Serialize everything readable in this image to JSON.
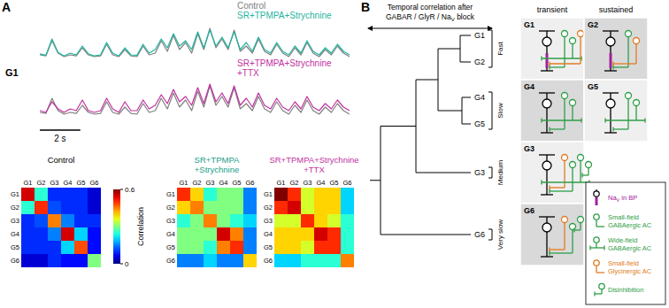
{
  "panel_a": {
    "label": "A",
    "row_label": "G1"
  },
  "chart_data": [
    {
      "type": "line",
      "tick_labels": false,
      "xlim": [
        0,
        15.3
      ],
      "ylim": [
        0,
        1
      ],
      "x": [
        0,
        0.3,
        0.6,
        0.9,
        1.2,
        1.5,
        1.8,
        2.1,
        2.4,
        2.7,
        3,
        3.3,
        3.6,
        3.9,
        4.2,
        4.5,
        4.8,
        5.1,
        5.4,
        5.7,
        6,
        6.3,
        6.6,
        6.9,
        7.2,
        7.5,
        7.8,
        8.1,
        8.4,
        8.7,
        9,
        9.3,
        9.6,
        9.9,
        10.2,
        10.5,
        10.8,
        11.1,
        11.4,
        11.7,
        12,
        12.3,
        12.6,
        12.9,
        13.2,
        13.5,
        13.8,
        14.1,
        14.4,
        14.7,
        15,
        15.3
      ],
      "series": [
        {
          "name": "Control",
          "color": "#808080",
          "values": [
            0.15,
            0.12,
            0.55,
            0.2,
            0.1,
            0.15,
            0.12,
            0.35,
            0.15,
            0.1,
            0.12,
            0.45,
            0.15,
            0.1,
            0.3,
            0.12,
            0.1,
            0.4,
            0.15,
            0.2,
            0.55,
            0.25,
            0.7,
            0.3,
            0.5,
            0.2,
            0.75,
            0.3,
            0.9,
            0.35,
            0.6,
            0.3,
            0.85,
            0.25,
            0.4,
            0.2,
            0.6,
            0.25,
            0.15,
            0.45,
            0.2,
            0.1,
            0.35,
            0.15,
            0.5,
            0.2,
            0.1,
            0.3,
            0.15,
            0.4,
            0.2,
            0.1
          ]
        },
        {
          "name": "SR+TPMPA+Strychnine",
          "color": "#1fb5a0",
          "values": [
            0.18,
            0.14,
            0.6,
            0.22,
            0.12,
            0.2,
            0.15,
            0.4,
            0.18,
            0.12,
            0.15,
            0.5,
            0.2,
            0.12,
            0.35,
            0.15,
            0.14,
            0.45,
            0.2,
            0.3,
            0.6,
            0.35,
            0.75,
            0.4,
            0.55,
            0.3,
            0.8,
            0.35,
            0.85,
            0.4,
            0.65,
            0.35,
            0.8,
            0.3,
            0.5,
            0.25,
            0.65,
            0.3,
            0.2,
            0.5,
            0.25,
            0.15,
            0.4,
            0.2,
            0.55,
            0.25,
            0.15,
            0.35,
            0.2,
            0.45,
            0.25,
            0.15
          ]
        }
      ]
    },
    {
      "type": "line",
      "tick_labels": false,
      "xlim": [
        0,
        15.3
      ],
      "ylim": [
        0,
        1
      ],
      "x": [
        0,
        0.3,
        0.6,
        0.9,
        1.2,
        1.5,
        1.8,
        2.1,
        2.4,
        2.7,
        3,
        3.3,
        3.6,
        3.9,
        4.2,
        4.5,
        4.8,
        5.1,
        5.4,
        5.7,
        6,
        6.3,
        6.6,
        6.9,
        7.2,
        7.5,
        7.8,
        8.1,
        8.4,
        8.7,
        9,
        9.3,
        9.6,
        9.9,
        10.2,
        10.5,
        10.8,
        11.1,
        11.4,
        11.7,
        12,
        12.3,
        12.6,
        12.9,
        13.2,
        13.5,
        13.8,
        14.1,
        14.4,
        14.7,
        15,
        15.3
      ],
      "series": [
        {
          "color": "#808080",
          "values": [
            0.15,
            0.12,
            0.55,
            0.2,
            0.1,
            0.15,
            0.12,
            0.35,
            0.15,
            0.1,
            0.12,
            0.45,
            0.15,
            0.1,
            0.3,
            0.12,
            0.1,
            0.4,
            0.15,
            0.2,
            0.55,
            0.25,
            0.7,
            0.3,
            0.5,
            0.2,
            0.75,
            0.3,
            0.9,
            0.35,
            0.6,
            0.3,
            0.85,
            0.25,
            0.4,
            0.2,
            0.6,
            0.25,
            0.15,
            0.45,
            0.2,
            0.1,
            0.35,
            0.15,
            0.5,
            0.2,
            0.1,
            0.3,
            0.15,
            0.4,
            0.2,
            0.1
          ]
        },
        {
          "name": [
            "SR+TPMPA+Strychnine",
            "+TTX"
          ],
          "color": "#c2319f",
          "values": [
            0.2,
            0.15,
            0.45,
            0.25,
            0.15,
            0.25,
            0.2,
            0.5,
            0.2,
            0.15,
            0.2,
            0.55,
            0.25,
            0.15,
            0.45,
            0.2,
            0.2,
            0.5,
            0.25,
            0.35,
            0.65,
            0.4,
            0.8,
            0.45,
            0.6,
            0.35,
            0.85,
            0.4,
            0.95,
            0.45,
            0.7,
            0.4,
            0.9,
            0.35,
            0.55,
            0.3,
            0.7,
            0.35,
            0.25,
            0.55,
            0.3,
            0.2,
            0.45,
            0.25,
            0.6,
            0.3,
            0.2,
            0.4,
            0.25,
            0.5,
            0.3,
            0.2
          ]
        }
      ],
      "scale_bar": {
        "value": 2,
        "label": "2 s"
      }
    },
    {
      "type": "heatmap",
      "title": [
        "Control"
      ],
      "color": "#000000",
      "categories": [
        "G1",
        "G2",
        "G3",
        "G4",
        "G5",
        "G6"
      ],
      "cells": [
        [
          0.55,
          0.25,
          0.1,
          0.1,
          0.1,
          0.05
        ],
        [
          0.25,
          0.5,
          0.12,
          0.1,
          0.1,
          0.05
        ],
        [
          0.1,
          0.12,
          0.45,
          0.15,
          0.1,
          0.1
        ],
        [
          0.1,
          0.1,
          0.15,
          0.55,
          0.2,
          0.08
        ],
        [
          0.1,
          0.1,
          0.1,
          0.2,
          0.48,
          0.08
        ],
        [
          0.05,
          0.05,
          0.1,
          0.08,
          0.08,
          0.3
        ]
      ],
      "colorbar": {
        "label": "Correlation",
        "range": [
          0,
          0.6
        ],
        "ticks": [
          0,
          0.6
        ]
      }
    },
    {
      "type": "heatmap",
      "title": [
        "SR+TPMPA",
        "+Strychnine"
      ],
      "color": "#1a9e8a",
      "categories": [
        "G1",
        "G2",
        "G3",
        "G4",
        "G5",
        "G6"
      ],
      "cells": [
        [
          0.5,
          0.4,
          0.25,
          0.3,
          0.3,
          0.15
        ],
        [
          0.4,
          0.45,
          0.3,
          0.3,
          0.3,
          0.15
        ],
        [
          0.25,
          0.3,
          0.45,
          0.3,
          0.25,
          0.2
        ],
        [
          0.3,
          0.3,
          0.3,
          0.55,
          0.45,
          0.15
        ],
        [
          0.3,
          0.3,
          0.25,
          0.45,
          0.5,
          0.15
        ],
        [
          0.15,
          0.15,
          0.2,
          0.15,
          0.15,
          0.4
        ]
      ]
    },
    {
      "type": "heatmap",
      "title": [
        "SR+TPMPA+Strychnine",
        "+TTX"
      ],
      "color": "#c2319f",
      "categories": [
        "G1",
        "G2",
        "G3",
        "G4",
        "G5",
        "G6"
      ],
      "cells": [
        [
          0.7,
          0.5,
          0.35,
          0.4,
          0.4,
          0.2
        ],
        [
          0.5,
          0.55,
          0.35,
          0.4,
          0.4,
          0.2
        ],
        [
          0.35,
          0.35,
          0.5,
          0.4,
          0.35,
          0.25
        ],
        [
          0.4,
          0.4,
          0.4,
          0.55,
          0.5,
          0.25
        ],
        [
          0.4,
          0.4,
          0.35,
          0.5,
          0.5,
          0.25
        ],
        [
          0.2,
          0.2,
          0.25,
          0.25,
          0.25,
          0.45
        ]
      ]
    }
  ],
  "panel_b": {
    "label": "B",
    "title": [
      "Temporal correlation after",
      {
        "text": "GABAR / GlyR / Na",
        "sub": "V",
        "tail": " block"
      }
    ],
    "leaves": [
      "G1",
      "G2",
      "G4",
      "G5",
      "G3",
      "G6"
    ],
    "columns": [
      "transient",
      "sustained"
    ],
    "rows": [
      {
        "label": "Fast",
        "cells": [
          {
            "group": "G1",
            "column": 0,
            "elements": [
              0,
              1,
              2,
              3
            ]
          },
          {
            "group": "G2",
            "column": 1,
            "elements": [
              0,
              1,
              3
            ]
          }
        ]
      },
      {
        "label": "Slow",
        "cells": [
          {
            "group": "G4",
            "column": 0,
            "elements": [
              1,
              2
            ]
          },
          {
            "group": "G5",
            "column": 1,
            "elements": [
              1,
              2
            ]
          }
        ]
      },
      {
        "label": "Medium",
        "cells": [
          {
            "group": "G3",
            "column": 0,
            "elements": [
              3,
              1,
              2,
              4
            ]
          }
        ]
      },
      {
        "label": "Very slow",
        "cells": [
          {
            "group": "G6",
            "column": 0,
            "elements": [
              3,
              1,
              4
            ]
          }
        ]
      }
    ],
    "legend": [
      {
        "text": "Na",
        "sub": "V",
        "tail": " in BP",
        "color": "#a0209a"
      },
      {
        "lines": [
          "Small-field",
          "GABAergic AC"
        ],
        "color": "#2e9e47"
      },
      {
        "lines": [
          "Wide-field",
          "GABAergic AC"
        ],
        "color": "#2e9e47"
      },
      {
        "lines": [
          "Small-field",
          "Glycinergic AC"
        ],
        "color": "#e07b20"
      },
      {
        "lines": [
          "Disinhibition"
        ],
        "color": "#2e9e47"
      }
    ]
  }
}
